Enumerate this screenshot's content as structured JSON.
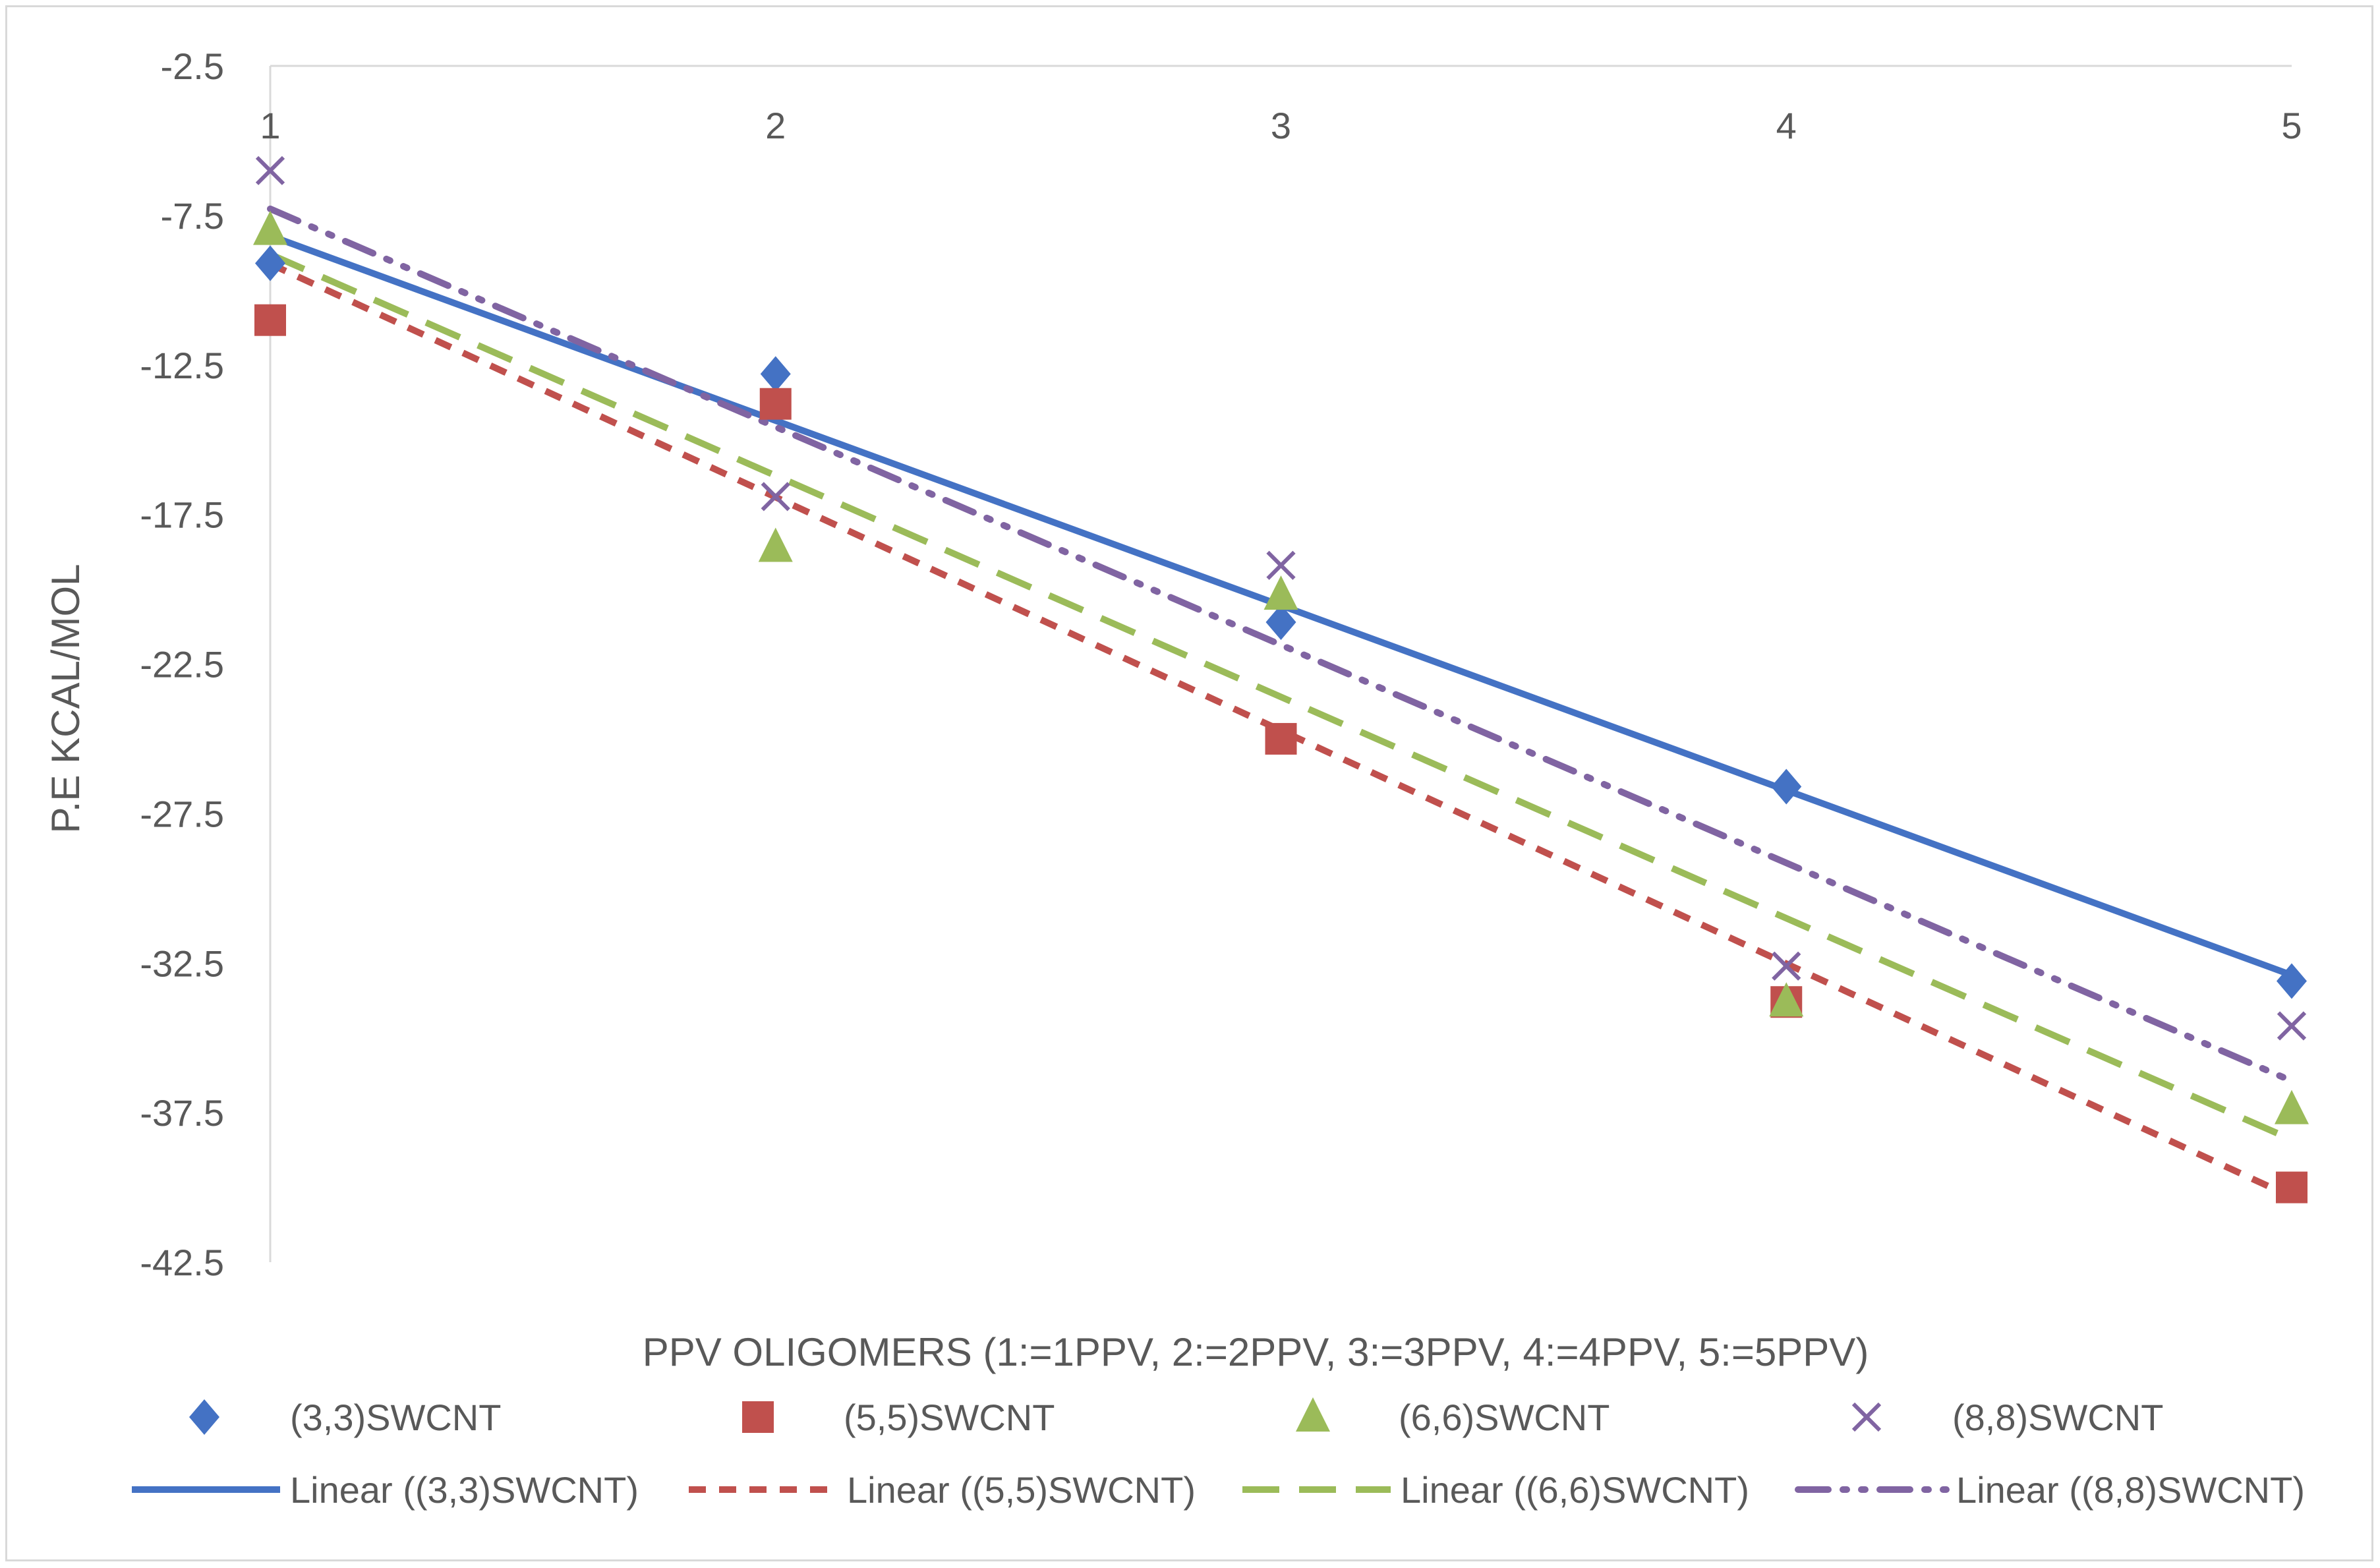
{
  "chart_data": {
    "type": "scatter",
    "title": "",
    "xlabel": "PPV OLIGOMERS  (1:=1PPV, 2:=2PPV, 3:=3PPV, 4:=4PPV, 5:=5PPV)",
    "ylabel": "P.E KCAL/MOL",
    "x": [
      1,
      2,
      3,
      4,
      5
    ],
    "x_ticks": [
      "1",
      "2",
      "3",
      "4",
      "5"
    ],
    "y_ticks": [
      "-2.5",
      "-7.5",
      "-12.5",
      "-17.5",
      "-22.5",
      "-27.5",
      "-32.5",
      "-37.5",
      "-42.5"
    ],
    "ylim": [
      -42.5,
      -2.5
    ],
    "x_axis_position": "top",
    "grid": false,
    "legend_position": "bottom",
    "series": [
      {
        "name": "(3,3)SWCNT",
        "marker": "diamond",
        "color": "#4472c4",
        "values": [
          -9.1,
          -12.8,
          -21.1,
          -26.6,
          -33.1
        ]
      },
      {
        "name": "(5,5)SWCNT",
        "marker": "square",
        "color": "#c0504d",
        "values": [
          -11.0,
          -13.8,
          -25.0,
          -33.8,
          -40.0
        ]
      },
      {
        "name": "(6,6)SWCNT",
        "marker": "triangle",
        "color": "#9bbb59",
        "values": [
          -8.0,
          -18.6,
          -20.2,
          -33.8,
          -37.4
        ]
      },
      {
        "name": "(8,8)SWCNT",
        "marker": "x",
        "color": "#8064a2",
        "values": [
          -6.0,
          -16.9,
          -19.2,
          -32.6,
          -34.6
        ]
      }
    ],
    "trendlines": [
      {
        "name": "Linear ((3,3)SWCNT)",
        "color": "#4472c4",
        "style": "solid",
        "of": "(3,3)SWCNT"
      },
      {
        "name": "Linear ((5,5)SWCNT)",
        "color": "#c0504d",
        "style": "short-dash",
        "of": "(5,5)SWCNT"
      },
      {
        "name": "Linear ((6,6)SWCNT)",
        "color": "#9bbb59",
        "style": "long-dash",
        "of": "(6,6)SWCNT"
      },
      {
        "name": "Linear ((8,8)SWCNT)",
        "color": "#8064a2",
        "style": "dash-dot-dot",
        "of": "(8,8)SWCNT"
      }
    ]
  }
}
